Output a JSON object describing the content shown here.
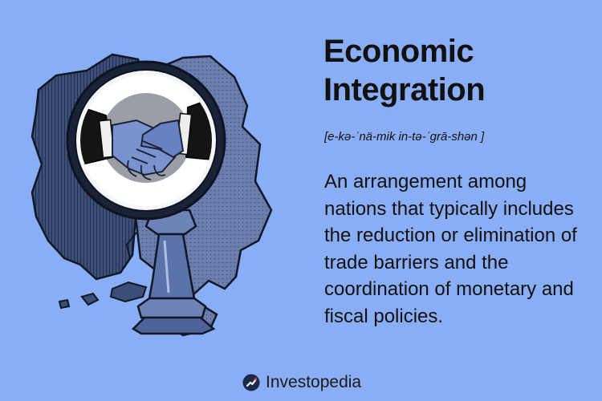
{
  "title": "Economic Integration",
  "pronunciation": "[e-kə-ˈnä-mik in-tə-ˈgrā-shən ]",
  "definition": "An arrangement among nations that typically includes the reduction or elimination of trade barriers and the coordination of monetary and fiscal policies.",
  "brand": {
    "name": "Investopedia",
    "icon": "investopedia-logo-icon"
  },
  "colors": {
    "background": "#8aaef5",
    "text": "#111111",
    "illustration_dark": "#1f2d45",
    "illustration_mid": "#6076a8"
  }
}
